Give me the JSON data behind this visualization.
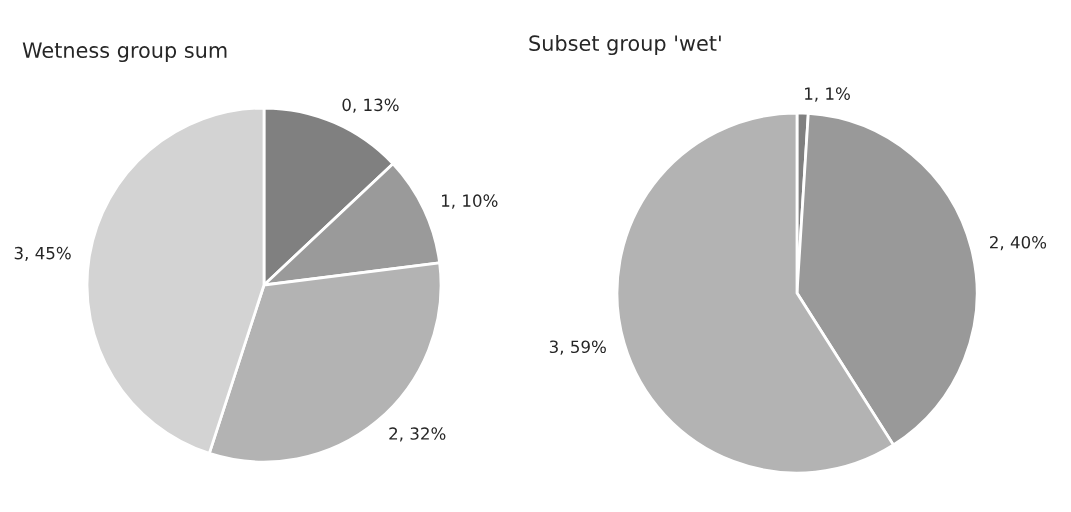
{
  "chart_data": [
    {
      "type": "pie",
      "title": "Wetness group sum",
      "categories": [
        "0",
        "1",
        "2",
        "3"
      ],
      "values": [
        13,
        10,
        32,
        45
      ],
      "value_labels": [
        ", 13%",
        ", 10%",
        ", 32%",
        ", 45%"
      ],
      "colors": [
        "#808080",
        "#9a9a9a",
        "#b3b3b3",
        "#d3d3d3"
      ]
    },
    {
      "type": "pie",
      "title": "Subset group 'wet'",
      "categories": [
        "1",
        "2",
        "3"
      ],
      "values": [
        1,
        40,
        59
      ],
      "value_labels": [
        ", 1%",
        ", 40%",
        ", 59%"
      ],
      "colors": [
        "#808080",
        "#999999",
        "#b3b3b3"
      ]
    }
  ]
}
